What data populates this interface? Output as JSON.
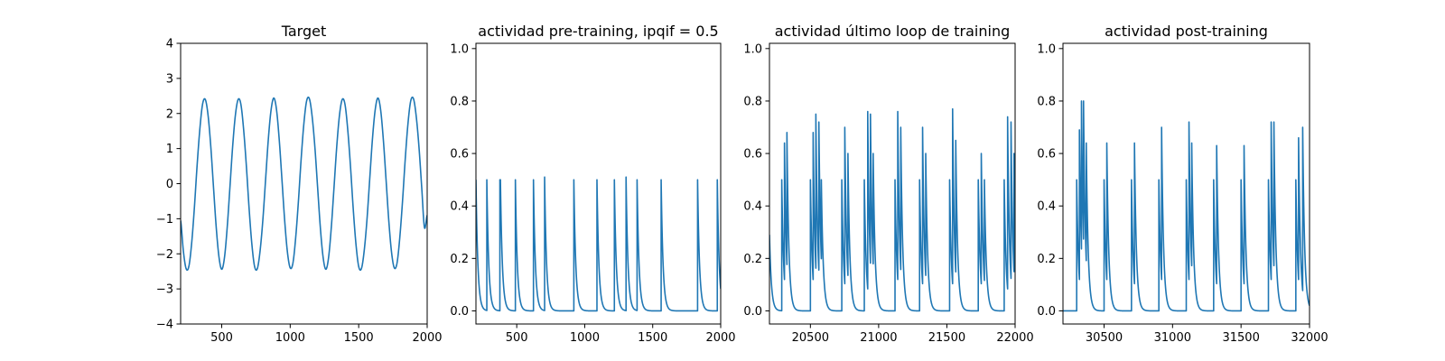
{
  "chart_data": [
    {
      "type": "line",
      "title": "Target",
      "xlim": [
        200,
        2000
      ],
      "ylim": [
        -4,
        4
      ],
      "xticks": [
        500,
        1000,
        1500,
        2000
      ],
      "yticks": [
        -4,
        -3,
        -2,
        -1,
        0,
        1,
        2,
        3,
        4
      ],
      "grid": false,
      "color": "#1f77b4",
      "series": [
        {
          "x": [
            200,
            220,
            240,
            260,
            280,
            300,
            320,
            340,
            360,
            380,
            400,
            420,
            440,
            460,
            480,
            500,
            520,
            540,
            560,
            580,
            600,
            620,
            640,
            660,
            680,
            700,
            720,
            740,
            760,
            780,
            800,
            820,
            840,
            860,
            880,
            900,
            920,
            940,
            960,
            980,
            1000,
            1020,
            1040,
            1060,
            1080,
            1100,
            1120,
            1140,
            1160,
            1180,
            1200,
            1220,
            1240,
            1260,
            1280,
            1300,
            1320,
            1340,
            1360,
            1380,
            1400,
            1420,
            1440,
            1460,
            1480,
            1500,
            1520,
            1540,
            1560,
            1580,
            1600,
            1620,
            1640,
            1660,
            1680,
            1700,
            1720,
            1740,
            1760,
            1780,
            1800,
            1820,
            1840,
            1860,
            1880,
            1900,
            1920,
            1940,
            1960,
            1980,
            2000
          ],
          "y": [
            -1.05,
            -1.92,
            -2.42,
            -2.36,
            -1.72,
            -0.71,
            0.5,
            1.54,
            2.26,
            2.4,
            1.96,
            1.07,
            -0.1,
            -1.25,
            -2.09,
            -2.44,
            -2.11,
            -1.25,
            -0.1,
            1.07,
            1.96,
            2.4,
            2.26,
            1.54,
            0.5,
            -0.71,
            -1.72,
            -2.36,
            -2.42,
            -1.92,
            -1.05,
            0.1,
            1.25,
            2.09,
            2.44,
            2.11,
            1.25,
            0.1,
            -1.07,
            -1.96,
            -2.4,
            -2.26,
            -1.54,
            -0.5,
            0.71,
            1.72,
            2.36,
            2.42,
            1.92,
            1.05,
            -0.1,
            -1.25,
            -2.09,
            -2.44,
            -2.11,
            -1.25,
            -0.1,
            1.07,
            1.96,
            2.4,
            2.26,
            1.54,
            0.5,
            -0.71,
            -1.72,
            -2.36,
            -2.42,
            -1.92,
            -1.05,
            0.1,
            1.25,
            2.09,
            2.44,
            2.11,
            1.25,
            0.1,
            -1.07,
            -1.96,
            -2.4,
            -2.26,
            -1.54,
            -0.5,
            0.71,
            1.72,
            2.36,
            2.42,
            1.92,
            1.05,
            -0.1,
            -1.25,
            -0.9
          ]
        }
      ]
    },
    {
      "type": "line",
      "title": "actividad pre-training, ipqif = 0.5",
      "xlim": [
        200,
        2000
      ],
      "ylim": [
        -0.05,
        1.02
      ],
      "xticks": [
        500,
        1000,
        1500,
        2000
      ],
      "yticks": [
        0.0,
        0.2,
        0.4,
        0.6,
        0.8,
        1.0
      ],
      "grid": false,
      "color": "#1f77b4",
      "baseline": 0,
      "tau": 14,
      "start": {
        "x": 200,
        "y": 0.5
      },
      "spikes": [
        {
          "x": 280,
          "y": 0.5
        },
        {
          "x": 376,
          "y": 0.5
        },
        {
          "x": 380,
          "y": 0.5
        },
        {
          "x": 490,
          "y": 0.5
        },
        {
          "x": 623,
          "y": 0.5
        },
        {
          "x": 705,
          "y": 0.51
        },
        {
          "x": 920,
          "y": 0.5
        },
        {
          "x": 1090,
          "y": 0.5
        },
        {
          "x": 1218,
          "y": 0.5
        },
        {
          "x": 1304,
          "y": 0.51
        },
        {
          "x": 1385,
          "y": 0.5
        },
        {
          "x": 1562,
          "y": 0.5
        },
        {
          "x": 1830,
          "y": 0.5
        },
        {
          "x": 1975,
          "y": 0.5
        }
      ]
    },
    {
      "type": "line",
      "title": "actividad último loop de training",
      "xlim": [
        20200,
        22000
      ],
      "ylim": [
        -0.05,
        1.02
      ],
      "xticks": [
        20500,
        21000,
        21500,
        22000
      ],
      "yticks": [
        0.0,
        0.2,
        0.4,
        0.6,
        0.8,
        1.0
      ],
      "grid": false,
      "color": "#1f77b4",
      "baseline": 0,
      "tau": 14,
      "start": {
        "x": 20200,
        "y": 0.29
      },
      "spikes": [
        {
          "x": 20290,
          "y": 0.5
        },
        {
          "x": 20310,
          "y": 0.64
        },
        {
          "x": 20328,
          "y": 0.68
        },
        {
          "x": 20500,
          "y": 0.5
        },
        {
          "x": 20520,
          "y": 0.68
        },
        {
          "x": 20540,
          "y": 0.75
        },
        {
          "x": 20562,
          "y": 0.72
        },
        {
          "x": 20580,
          "y": 0.5
        },
        {
          "x": 20730,
          "y": 0.5
        },
        {
          "x": 20752,
          "y": 0.7
        },
        {
          "x": 20775,
          "y": 0.6
        },
        {
          "x": 20895,
          "y": 0.5
        },
        {
          "x": 20920,
          "y": 0.76
        },
        {
          "x": 20940,
          "y": 0.75
        },
        {
          "x": 20960,
          "y": 0.6
        },
        {
          "x": 21120,
          "y": 0.5
        },
        {
          "x": 21140,
          "y": 0.76
        },
        {
          "x": 21162,
          "y": 0.7
        },
        {
          "x": 21300,
          "y": 0.5
        },
        {
          "x": 21322,
          "y": 0.7
        },
        {
          "x": 21345,
          "y": 0.6
        },
        {
          "x": 21520,
          "y": 0.5
        },
        {
          "x": 21542,
          "y": 0.77
        },
        {
          "x": 21565,
          "y": 0.65
        },
        {
          "x": 21730,
          "y": 0.5
        },
        {
          "x": 21752,
          "y": 0.6
        },
        {
          "x": 21775,
          "y": 0.5
        },
        {
          "x": 21920,
          "y": 0.5
        },
        {
          "x": 21945,
          "y": 0.74
        },
        {
          "x": 21970,
          "y": 0.72
        },
        {
          "x": 21992,
          "y": 0.6
        }
      ]
    },
    {
      "type": "line",
      "title": "actividad post-training",
      "xlim": [
        30200,
        32000
      ],
      "ylim": [
        -0.05,
        1.02
      ],
      "xticks": [
        30500,
        31000,
        31500,
        32000
      ],
      "yticks": [
        0.0,
        0.2,
        0.4,
        0.6,
        0.8,
        1.0
      ],
      "grid": false,
      "color": "#1f77b4",
      "baseline": 0,
      "tau": 14,
      "start": {
        "x": 30200,
        "y": 0.0
      },
      "spikes": [
        {
          "x": 30300,
          "y": 0.5
        },
        {
          "x": 30320,
          "y": 0.69
        },
        {
          "x": 30335,
          "y": 0.8
        },
        {
          "x": 30350,
          "y": 0.8
        },
        {
          "x": 30370,
          "y": 0.64
        },
        {
          "x": 30500,
          "y": 0.5
        },
        {
          "x": 30520,
          "y": 0.64
        },
        {
          "x": 30700,
          "y": 0.5
        },
        {
          "x": 30722,
          "y": 0.64
        },
        {
          "x": 30900,
          "y": 0.5
        },
        {
          "x": 30920,
          "y": 0.7
        },
        {
          "x": 31100,
          "y": 0.5
        },
        {
          "x": 31120,
          "y": 0.72
        },
        {
          "x": 31140,
          "y": 0.64
        },
        {
          "x": 31300,
          "y": 0.5
        },
        {
          "x": 31322,
          "y": 0.63
        },
        {
          "x": 31500,
          "y": 0.5
        },
        {
          "x": 31522,
          "y": 0.63
        },
        {
          "x": 31700,
          "y": 0.5
        },
        {
          "x": 31720,
          "y": 0.72
        },
        {
          "x": 31740,
          "y": 0.72
        },
        {
          "x": 31900,
          "y": 0.5
        },
        {
          "x": 31920,
          "y": 0.66
        },
        {
          "x": 31950,
          "y": 0.7
        }
      ]
    }
  ]
}
